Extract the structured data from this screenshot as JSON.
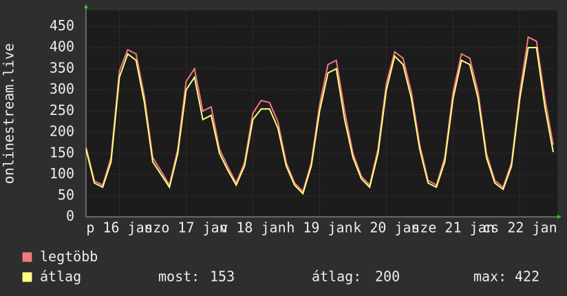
{
  "chart_data": {
    "type": "line",
    "y_label": "onlinestream.live",
    "x": [
      0,
      3,
      6,
      9,
      12,
      15,
      18,
      21,
      24,
      27,
      30,
      33,
      36,
      39,
      42,
      45,
      48,
      51,
      54,
      57,
      60,
      63,
      66,
      69,
      72,
      75,
      78,
      81,
      84,
      87,
      90,
      93,
      96,
      99,
      102,
      105,
      108,
      111,
      114,
      117,
      120,
      123,
      126,
      129,
      132,
      135,
      138,
      141,
      144,
      147,
      150,
      153,
      156,
      159,
      162,
      165,
      168
    ],
    "series": [
      {
        "name": "legtöbb",
        "color": "#f07a80",
        "values": [
          165,
          85,
          75,
          140,
          345,
          395,
          385,
          285,
          140,
          108,
          75,
          160,
          320,
          350,
          250,
          260,
          160,
          118,
          80,
          128,
          245,
          275,
          270,
          225,
          128,
          80,
          60,
          128,
          265,
          360,
          370,
          250,
          150,
          96,
          75,
          160,
          315,
          390,
          375,
          295,
          170,
          86,
          75,
          140,
          295,
          385,
          375,
          295,
          150,
          86,
          70,
          128,
          295,
          425,
          415,
          280,
          170
        ]
      },
      {
        "name": "átlag",
        "color": "#ffff80",
        "values": [
          160,
          80,
          70,
          130,
          330,
          385,
          370,
          270,
          130,
          100,
          70,
          150,
          300,
          330,
          230,
          240,
          150,
          110,
          75,
          120,
          230,
          255,
          255,
          210,
          120,
          75,
          55,
          120,
          250,
          340,
          350,
          230,
          140,
          90,
          70,
          150,
          300,
          380,
          360,
          280,
          160,
          80,
          70,
          130,
          280,
          370,
          360,
          280,
          140,
          80,
          65,
          120,
          280,
          400,
          400,
          260,
          153
        ]
      }
    ],
    "xlim": [
      0,
      169
    ],
    "xticks": [
      {
        "value": 12,
        "label": "p 16 jan"
      },
      {
        "value": 36,
        "label": "szo 17 jan"
      },
      {
        "value": 60,
        "label": "v 18 jan"
      },
      {
        "value": 84,
        "label": "h 19 jan"
      },
      {
        "value": 108,
        "label": "k 20 jan"
      },
      {
        "value": 132,
        "label": "sze 21 jan"
      },
      {
        "value": 156,
        "label": "cs 22 jan"
      }
    ],
    "ylim": [
      0,
      480
    ],
    "yticks": [
      0,
      50,
      100,
      150,
      200,
      250,
      300,
      350,
      400,
      450
    ],
    "grid": true,
    "stats": [
      {
        "label": "most:",
        "value": 153
      },
      {
        "label": "átlag:",
        "value": 200
      },
      {
        "label": "max:",
        "value": 422
      }
    ]
  }
}
